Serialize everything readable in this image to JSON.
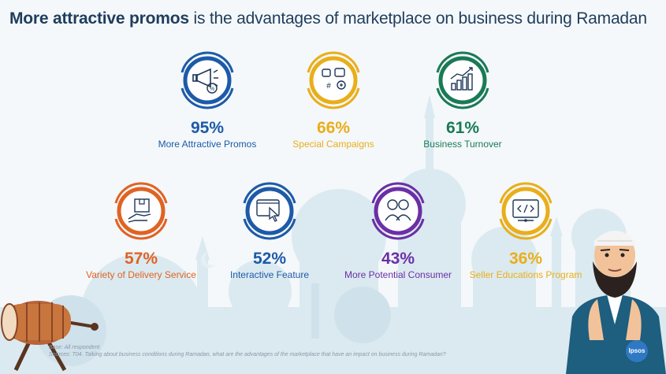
{
  "header": {
    "title_bold": "More attractive promos",
    "title_rest": " is the advantages  of marketplace on business during Ramadan"
  },
  "items": [
    {
      "value": "95%",
      "label": "More Attractive Promos",
      "color": "#1d5aa8",
      "icon": "megaphone-discount-icon"
    },
    {
      "value": "66%",
      "label": "Special Campaigns",
      "color": "#e9ae1b",
      "icon": "social-campaign-icon"
    },
    {
      "value": "61%",
      "label": "Business Turnover",
      "color": "#1a7a55",
      "icon": "growth-chart-icon"
    },
    {
      "value": "57%",
      "label": "Variety of Delivery Service",
      "color": "#e06323",
      "icon": "delivery-box-icon"
    },
    {
      "value": "52%",
      "label": "Interactive Feature",
      "color": "#1d5aa8",
      "icon": "click-screen-icon"
    },
    {
      "value": "43%",
      "label": "More Potential Consumer",
      "color": "#6b2fa6",
      "icon": "consumers-icon"
    },
    {
      "value": "36%",
      "label": "Seller Educations Program",
      "color": "#e9ae1b",
      "icon": "code-monitor-icon"
    }
  ],
  "footnote": {
    "base": "Base: All respondent",
    "source": "Sources: T04. Talking about business conditions during Ramadan, what are the advantages of the marketplace that have an impact on business during  Ramadan?"
  },
  "brand": {
    "logo_text": "Ipsos"
  }
}
